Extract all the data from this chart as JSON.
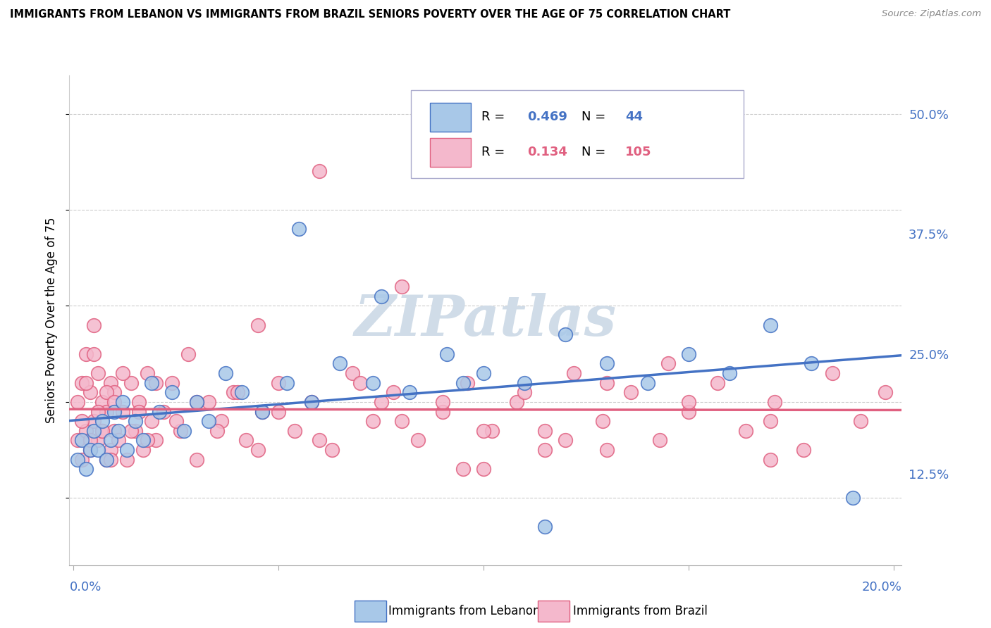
{
  "title": "IMMIGRANTS FROM LEBANON VS IMMIGRANTS FROM BRAZIL SENIORS POVERTY OVER THE AGE OF 75 CORRELATION CHART",
  "source": "Source: ZipAtlas.com",
  "ylabel": "Seniors Poverty Over the Age of 75",
  "yticks_labels": [
    "12.5%",
    "25.0%",
    "37.5%",
    "50.0%"
  ],
  "ytick_vals": [
    0.125,
    0.25,
    0.375,
    0.5
  ],
  "ylim": [
    0.03,
    0.54
  ],
  "xlim": [
    -0.001,
    0.202
  ],
  "line_lebanon_color": "#4472c4",
  "line_brazil_color": "#e06080",
  "scatter_lebanon_color": "#a8c8e8",
  "scatter_brazil_color": "#f4b8cc",
  "scatter_lebanon_edge": "#4472c4",
  "scatter_brazil_edge": "#e06080",
  "watermark_text": "ZIPatlas",
  "lebanon_legend_label": "Immigrants from Lebanon",
  "brazil_legend_label": "Immigrants from Brazil",
  "R_leb": "0.469",
  "N_leb": "44",
  "R_bra": "0.134",
  "N_bra": "105",
  "leb_x": [
    0.001,
    0.002,
    0.003,
    0.004,
    0.005,
    0.006,
    0.007,
    0.008,
    0.009,
    0.01,
    0.011,
    0.012,
    0.013,
    0.015,
    0.017,
    0.019,
    0.021,
    0.024,
    0.027,
    0.03,
    0.033,
    0.037,
    0.041,
    0.046,
    0.052,
    0.058,
    0.065,
    0.073,
    0.082,
    0.091,
    0.1,
    0.11,
    0.12,
    0.13,
    0.14,
    0.15,
    0.16,
    0.17,
    0.18,
    0.19,
    0.055,
    0.075,
    0.095,
    0.115
  ],
  "leb_y": [
    0.14,
    0.16,
    0.13,
    0.15,
    0.17,
    0.15,
    0.18,
    0.14,
    0.16,
    0.19,
    0.17,
    0.2,
    0.15,
    0.18,
    0.16,
    0.22,
    0.19,
    0.21,
    0.17,
    0.2,
    0.18,
    0.23,
    0.21,
    0.19,
    0.22,
    0.2,
    0.24,
    0.22,
    0.21,
    0.25,
    0.23,
    0.22,
    0.27,
    0.24,
    0.22,
    0.25,
    0.23,
    0.28,
    0.24,
    0.1,
    0.38,
    0.31,
    0.22,
    0.07
  ],
  "bra_x": [
    0.001,
    0.001,
    0.002,
    0.002,
    0.003,
    0.003,
    0.004,
    0.004,
    0.005,
    0.005,
    0.006,
    0.006,
    0.007,
    0.007,
    0.008,
    0.008,
    0.009,
    0.009,
    0.01,
    0.01,
    0.011,
    0.012,
    0.013,
    0.014,
    0.015,
    0.016,
    0.017,
    0.018,
    0.019,
    0.02,
    0.022,
    0.024,
    0.026,
    0.028,
    0.03,
    0.033,
    0.036,
    0.039,
    0.042,
    0.046,
    0.05,
    0.054,
    0.058,
    0.063,
    0.068,
    0.073,
    0.078,
    0.084,
    0.09,
    0.096,
    0.102,
    0.108,
    0.115,
    0.122,
    0.129,
    0.136,
    0.143,
    0.15,
    0.157,
    0.164,
    0.171,
    0.178,
    0.185,
    0.192,
    0.198,
    0.002,
    0.003,
    0.004,
    0.005,
    0.006,
    0.007,
    0.008,
    0.009,
    0.01,
    0.012,
    0.014,
    0.016,
    0.018,
    0.02,
    0.025,
    0.03,
    0.035,
    0.04,
    0.045,
    0.05,
    0.06,
    0.07,
    0.08,
    0.09,
    0.1,
    0.11,
    0.12,
    0.13,
    0.15,
    0.17,
    0.06,
    0.08,
    0.1,
    0.13,
    0.17,
    0.045,
    0.075,
    0.095,
    0.115,
    0.145
  ],
  "bra_y": [
    0.16,
    0.2,
    0.14,
    0.22,
    0.17,
    0.25,
    0.15,
    0.21,
    0.18,
    0.28,
    0.16,
    0.23,
    0.17,
    0.2,
    0.14,
    0.19,
    0.15,
    0.22,
    0.17,
    0.21,
    0.16,
    0.19,
    0.14,
    0.22,
    0.17,
    0.2,
    0.15,
    0.23,
    0.18,
    0.16,
    0.19,
    0.22,
    0.17,
    0.25,
    0.14,
    0.2,
    0.18,
    0.21,
    0.16,
    0.19,
    0.22,
    0.17,
    0.2,
    0.15,
    0.23,
    0.18,
    0.21,
    0.16,
    0.19,
    0.22,
    0.17,
    0.2,
    0.15,
    0.23,
    0.18,
    0.21,
    0.16,
    0.19,
    0.22,
    0.17,
    0.2,
    0.15,
    0.23,
    0.18,
    0.21,
    0.18,
    0.22,
    0.16,
    0.25,
    0.19,
    0.17,
    0.21,
    0.14,
    0.2,
    0.23,
    0.17,
    0.19,
    0.16,
    0.22,
    0.18,
    0.2,
    0.17,
    0.21,
    0.15,
    0.19,
    0.16,
    0.22,
    0.18,
    0.2,
    0.17,
    0.21,
    0.16,
    0.22,
    0.2,
    0.18,
    0.44,
    0.32,
    0.13,
    0.15,
    0.14,
    0.28,
    0.2,
    0.13,
    0.17,
    0.24
  ]
}
